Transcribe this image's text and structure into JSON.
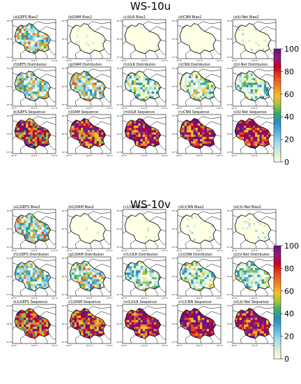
{
  "chart_data": [
    {
      "type": "heatmap",
      "title": "WS-10u",
      "rows": [
        {
          "metric": "Bias2",
          "panels": [
            {
              "label": "(a)GEFS Bias2",
              "level": 35
            },
            {
              "label": "(b)DAM Bias2",
              "level": 2
            },
            {
              "label": "(c)ULR Bias2",
              "level": 2
            },
            {
              "label": "(d)CNN Bias2",
              "level": 4
            },
            {
              "label": "(e)U-Net Bias2",
              "level": 8
            }
          ]
        },
        {
          "metric": "Distribution",
          "panels": [
            {
              "label": "(f)GEFS Distributon",
              "level": 30
            },
            {
              "label": "(g)DAM Distributon",
              "level": 35
            },
            {
              "label": "(h)ULR Distributon",
              "level": 20
            },
            {
              "label": "(i)CNN Distributon",
              "level": 22
            },
            {
              "label": "(j)U-Net Distributon",
              "level": 18
            }
          ]
        },
        {
          "metric": "Sequence",
          "panels": [
            {
              "label": "(k)GEFS Sequence",
              "level": 72
            },
            {
              "label": "(l)DAM Sequence",
              "level": 78
            },
            {
              "label": "(m)ULR Sequence",
              "level": 85
            },
            {
              "label": "(n)CNN Sequence",
              "level": 85
            },
            {
              "label": "(o)U-Net Sequence",
              "level": 86
            }
          ]
        }
      ],
      "xticks": [
        "96°E",
        "104°E",
        "112°E"
      ],
      "yticks": [
        "36°N",
        "28°N",
        "20°N"
      ],
      "colorbar": {
        "min": 0,
        "max": 100,
        "ticks": [
          0,
          20,
          40,
          60,
          80,
          100
        ]
      }
    },
    {
      "type": "heatmap",
      "title": "WS-10v",
      "rows": [
        {
          "metric": "Bias2",
          "panels": [
            {
              "label": "(a1)GEFS Bias2",
              "level": 35
            },
            {
              "label": "(b1)DAM Bias2",
              "level": 3
            },
            {
              "label": "(c1)ULR Bias2",
              "level": 2
            },
            {
              "label": "(d1)CNN Bias2",
              "level": 10
            },
            {
              "label": "(e1)U-Net Bias2",
              "level": 8
            }
          ]
        },
        {
          "metric": "Distribution",
          "panels": [
            {
              "label": "(f1)GEFS Distributon",
              "level": 30
            },
            {
              "label": "(g1)DAM Distributon",
              "level": 33
            },
            {
              "label": "(h1)ULR Distributon",
              "level": 20
            },
            {
              "label": "(i1)CNN Distributon",
              "level": 22
            },
            {
              "label": "(j1)U-Net Distributon",
              "level": 18
            }
          ]
        },
        {
          "metric": "Sequence",
          "panels": [
            {
              "label": "(k1)GEFS Sequence",
              "level": 72
            },
            {
              "label": "(l1)DAM Sequence",
              "level": 76
            },
            {
              "label": "(m1)ULR Sequence",
              "level": 85
            },
            {
              "label": "(n1)CNN Sequence",
              "level": 87
            },
            {
              "label": "(o1)U-Net Sequence",
              "level": 86
            }
          ]
        }
      ],
      "xticks": [
        "96°E",
        "104°E",
        "112°E"
      ],
      "yticks": [
        "36°N",
        "28°N",
        "20°N"
      ],
      "colorbar": {
        "min": 0,
        "max": 100,
        "ticks": [
          0,
          20,
          40,
          60,
          80,
          100
        ]
      }
    }
  ],
  "colormap": [
    "#ffffe5",
    "#d6efd0",
    "#a6dbec",
    "#56b0d6",
    "#2b8cbe",
    "#36a86b",
    "#9cc23f",
    "#f2c12e",
    "#ee8a2a",
    "#e64a1f",
    "#c8001e",
    "#8e1c7a",
    "#6a0f7d"
  ]
}
